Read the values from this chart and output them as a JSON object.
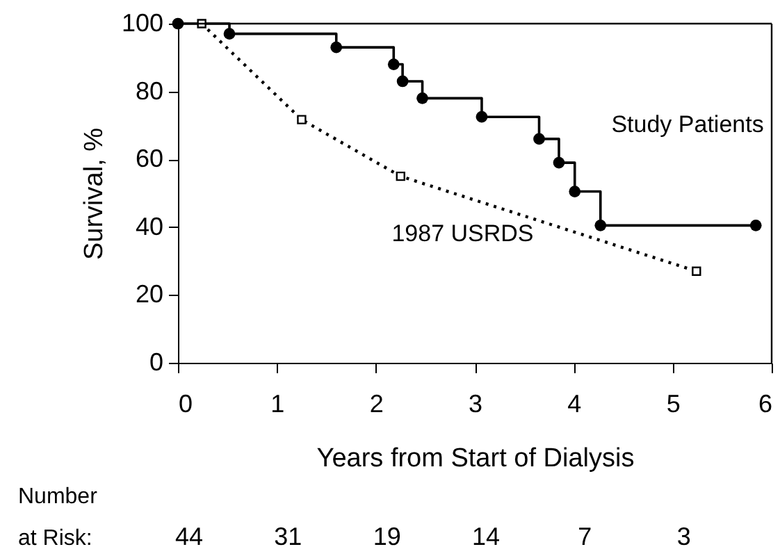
{
  "chart_data": {
    "type": "step",
    "xlabel": "Years from Start of Dialysis",
    "ylabel": "Survival, %",
    "xlim": [
      0,
      6
    ],
    "ylim": [
      0,
      100
    ],
    "xticks": [
      0,
      1,
      2,
      3,
      4,
      5,
      6
    ],
    "yticks": [
      0,
      20,
      40,
      60,
      80,
      100
    ],
    "grid": false,
    "series": [
      {
        "name": "Study Patients",
        "color": "#000000",
        "marker": "circle",
        "line_style": "solid",
        "x": [
          0,
          0.52,
          1.6,
          2.18,
          2.27,
          2.47,
          3.07,
          3.65,
          3.85,
          4.01,
          4.27,
          5.84
        ],
        "values": [
          100,
          97,
          93,
          88,
          83,
          78,
          72.5,
          66,
          59,
          50.5,
          40.5,
          40.5
        ]
      },
      {
        "name": "1987 USRDS",
        "type": "line",
        "color": "#000000",
        "marker": "square",
        "line_style": "dotted",
        "x": [
          0.24,
          1.25,
          2.25,
          5.24
        ],
        "values": [
          100,
          71.7,
          55,
          27
        ]
      }
    ],
    "annotations": [
      "Number\nat Risk:",
      "44",
      "31",
      "19",
      "14",
      "7",
      "3"
    ]
  }
}
